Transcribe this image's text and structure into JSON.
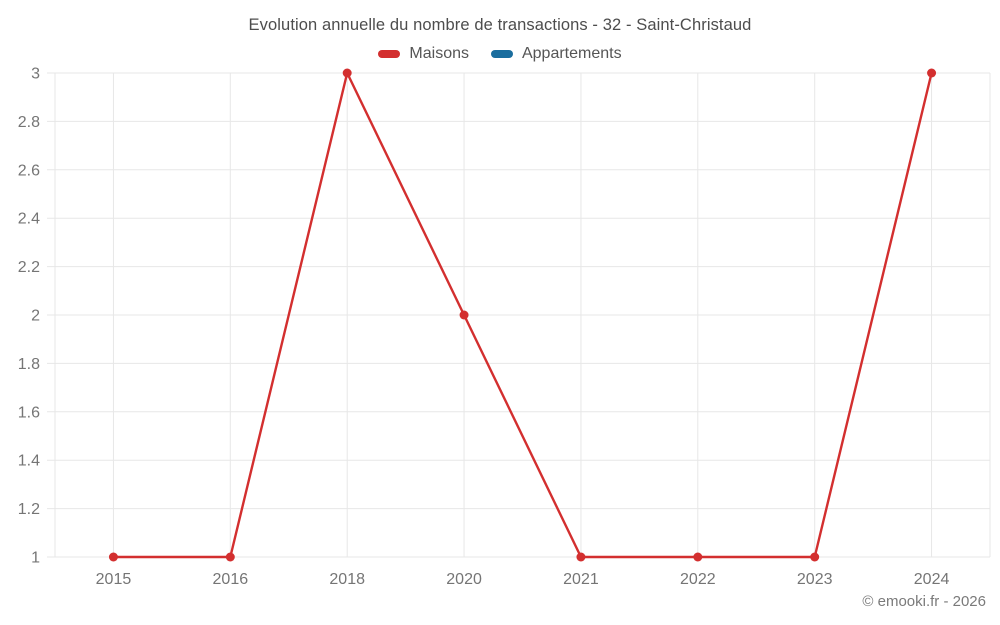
{
  "chart": {
    "title": "Evolution annuelle du nombre de transactions - 32 - Saint-Christaud"
  },
  "chart_data": {
    "type": "line",
    "title": "Evolution annuelle du nombre de transactions - 32 - Saint-Christaud",
    "categories": [
      "2015",
      "2016",
      "2018",
      "2020",
      "2021",
      "2022",
      "2023",
      "2024"
    ],
    "series": [
      {
        "name": "Maisons",
        "color": "#d32f2f",
        "values": [
          1,
          1,
          3,
          2,
          1,
          1,
          1,
          3
        ]
      },
      {
        "name": "Appartements",
        "color": "#1a6d9e",
        "values": []
      }
    ],
    "xlabel": "",
    "ylabel": "",
    "ylim": [
      1,
      3
    ],
    "ytick_step": 0.2,
    "grid": true,
    "legend_position": "top",
    "marker_radius": 4.5,
    "line_width": 2.4,
    "grid_color": "#e7e7e7",
    "tick_label_color": "#757575"
  },
  "footer": {
    "text": "© emooki.fr - 2026"
  }
}
